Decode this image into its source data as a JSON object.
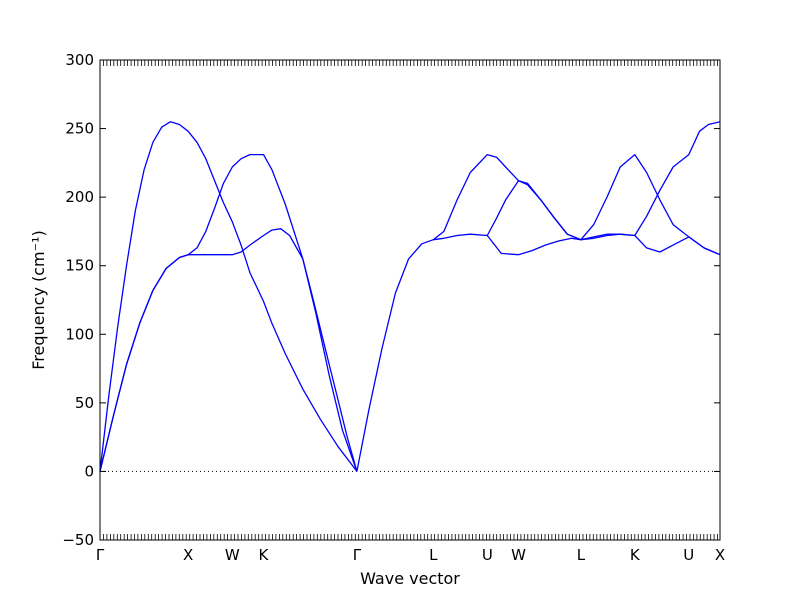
{
  "chart_data": {
    "type": "line",
    "title": "",
    "xlabel": "Wave vector",
    "ylabel": "Frequency (cm⁻¹)",
    "ylim": [
      -50,
      300
    ],
    "yticks": [
      -50,
      0,
      50,
      100,
      150,
      200,
      250,
      300
    ],
    "x_ticks": [
      {
        "label": "Γ",
        "x": 0.0
      },
      {
        "label": "X",
        "x": 1.0
      },
      {
        "label": "W",
        "x": 1.5
      },
      {
        "label": "K",
        "x": 1.854
      },
      {
        "label": "Γ",
        "x": 2.914
      },
      {
        "label": "L",
        "x": 3.78
      },
      {
        "label": "U",
        "x": 4.393
      },
      {
        "label": "W",
        "x": 4.747
      },
      {
        "label": "L",
        "x": 5.454
      },
      {
        "label": "K",
        "x": 6.066
      },
      {
        "label": "U",
        "x": 6.678
      },
      {
        "label": "X",
        "x": 7.032
      }
    ],
    "xlim": [
      0,
      7.032
    ],
    "zero_line": true,
    "line_color": "#0000ff",
    "series": [
      {
        "x": [
          0,
          0.1,
          0.2,
          0.3,
          0.4,
          0.5,
          0.6,
          0.7,
          0.8,
          0.9,
          1.0,
          1.1,
          1.2,
          1.3,
          1.4,
          1.5,
          1.6,
          1.7,
          1.854,
          1.95,
          2.1,
          2.3,
          2.5,
          2.7,
          2.914
        ],
        "values": [
          0,
          55,
          105,
          150,
          190,
          220,
          240,
          251,
          255,
          253,
          248,
          240,
          228,
          212,
          196,
          182,
          165,
          145,
          124,
          108,
          86,
          60,
          38,
          18,
          0
        ]
      },
      {
        "x": [
          0,
          0.15,
          0.3,
          0.45,
          0.6,
          0.75,
          0.9,
          1.0,
          1.1,
          1.2,
          1.3,
          1.4,
          1.5,
          1.6,
          1.7,
          1.854,
          1.95,
          2.1,
          2.2,
          2.3,
          2.4,
          2.5,
          2.6,
          2.7,
          2.8,
          2.914
        ],
        "values": [
          0,
          40,
          78,
          108,
          132,
          148,
          156,
          158,
          163,
          175,
          192,
          210,
          222,
          228,
          231,
          231,
          220,
          195,
          175,
          155,
          130,
          104,
          78,
          52,
          26,
          0
        ]
      },
      {
        "x": [
          0,
          0.15,
          0.3,
          0.45,
          0.6,
          0.75,
          0.9,
          1.0,
          1.2,
          1.4,
          1.5,
          1.6,
          1.7,
          1.854,
          1.95,
          2.05,
          2.15,
          2.3,
          2.45,
          2.6,
          2.75,
          2.914
        ],
        "values": [
          0,
          40,
          78,
          108,
          132,
          148,
          156,
          158,
          158,
          158,
          158,
          160,
          165,
          172,
          176,
          177,
          172,
          155,
          115,
          70,
          30,
          0
        ]
      },
      {
        "x": [
          2.914,
          3.05,
          3.2,
          3.35,
          3.5,
          3.65,
          3.78,
          3.9,
          4.05,
          4.2,
          4.393,
          4.55,
          4.747,
          4.9,
          5.05,
          5.2,
          5.35,
          5.454,
          5.6,
          5.75,
          5.9,
          6.066,
          6.2,
          6.35,
          6.5,
          6.678,
          6.85,
          7.032
        ],
        "values": [
          0,
          45,
          90,
          130,
          155,
          166,
          169,
          170,
          172,
          173,
          172,
          159,
          158,
          161,
          165,
          168,
          170,
          169,
          171,
          173,
          173,
          172,
          163,
          160,
          165,
          171,
          163,
          158
        ]
      },
      {
        "x": [
          3.78,
          3.9,
          4.05,
          4.2,
          4.393,
          4.5,
          4.6,
          4.747,
          4.85,
          5.0,
          5.15,
          5.3,
          5.454,
          5.6,
          5.75,
          5.9,
          6.066,
          6.2,
          6.35,
          6.5,
          6.678,
          6.85,
          7.032
        ],
        "values": [
          169,
          175,
          198,
          218,
          231,
          229,
          222,
          212,
          209,
          198,
          185,
          173,
          169,
          180,
          200,
          222,
          231,
          218,
          198,
          180,
          171,
          163,
          158
        ]
      },
      {
        "x": [
          4.393,
          4.5,
          4.6,
          4.747,
          4.85,
          5.0,
          5.15,
          5.3,
          5.454,
          5.6,
          5.75,
          5.9,
          6.066,
          6.2,
          6.35,
          6.5,
          6.678,
          6.8,
          6.9,
          7.032
        ],
        "values": [
          172,
          185,
          198,
          212,
          210,
          198,
          185,
          173,
          169,
          170,
          172,
          173,
          172,
          186,
          205,
          222,
          231,
          248,
          253,
          255
        ]
      }
    ]
  }
}
